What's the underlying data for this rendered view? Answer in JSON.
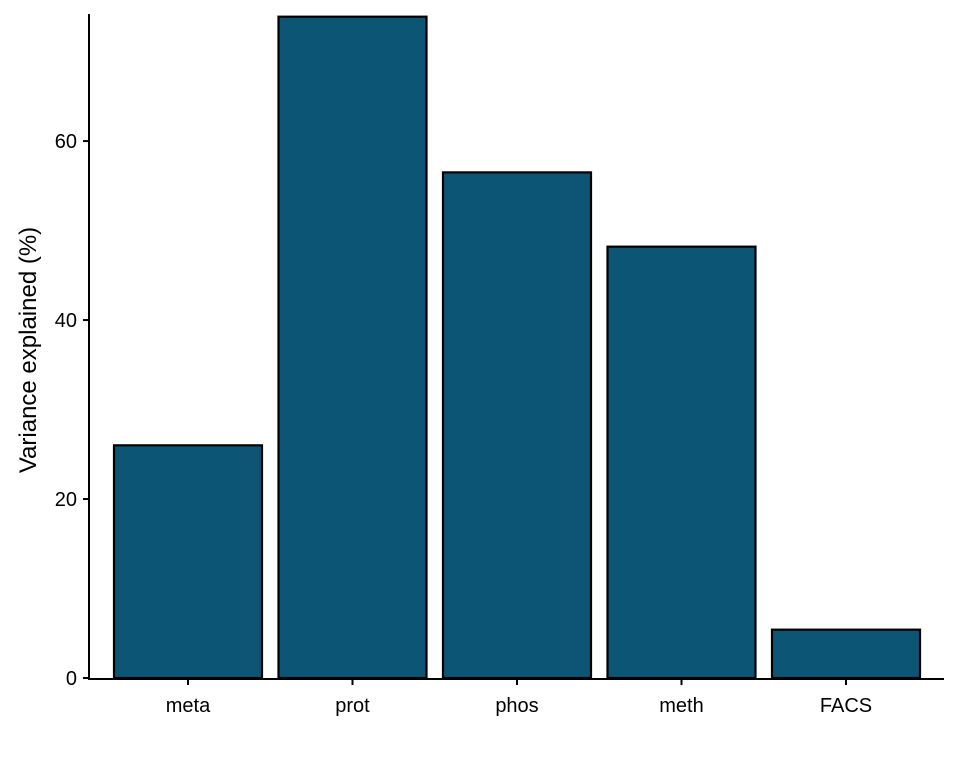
{
  "chart_data": {
    "type": "bar",
    "title": "",
    "xlabel": "",
    "ylabel": "Variance explained (%)",
    "categories": [
      "meta",
      "prot",
      "phos",
      "meth",
      "FACS"
    ],
    "values": [
      26.0,
      73.9,
      56.5,
      48.2,
      5.4
    ],
    "ylim": [
      0,
      74.2
    ],
    "yticks": [
      0,
      20,
      40,
      60
    ],
    "grid": false,
    "legend": "none",
    "bar_color": "#0d5575",
    "bar_edge_color": "#000000"
  }
}
